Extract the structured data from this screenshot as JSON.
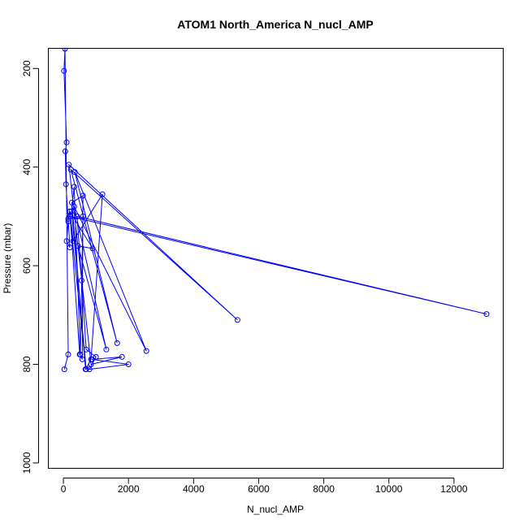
{
  "chart_data": {
    "type": "line",
    "title": "ATOM1 North_America N_nucl_AMP",
    "xlabel": "N_nucl_AMP",
    "ylabel": "Pressure (mbar)",
    "xlim": [
      -450,
      13500
    ],
    "ylim": [
      1010,
      160
    ],
    "y_reversed": true,
    "grid": false,
    "legend": "none",
    "line_color": "#0000ff",
    "marker": "open-circle",
    "xticks": [
      0,
      2000,
      4000,
      6000,
      8000,
      10000,
      12000
    ],
    "xtick_labels": [
      "0",
      "2000",
      "4000",
      "6000",
      "8000",
      "10000",
      "12000"
    ],
    "yticks": [
      200,
      400,
      600,
      800,
      1000
    ],
    "ytick_labels": [
      "200",
      "400",
      "600",
      "800",
      "1000"
    ],
    "series": [
      {
        "points": [
          [
            30,
            810
          ],
          [
            150,
            780
          ],
          [
            50,
            160
          ],
          [
            20,
            205
          ],
          [
            100,
            350
          ],
          [
            60,
            368
          ],
          [
            80,
            435
          ],
          [
            150,
            510
          ],
          [
            100,
            550
          ],
          [
            200,
            563
          ],
          [
            150,
            505
          ],
          [
            200,
            490
          ],
          [
            500,
            780
          ],
          [
            580,
            790
          ],
          [
            600,
            458
          ],
          [
            260,
            472
          ],
          [
            680,
            810
          ],
          [
            850,
            790
          ],
          [
            1200,
            455
          ],
          [
            300,
            550
          ],
          [
            200,
            490
          ],
          [
            900,
            565
          ],
          [
            450,
            560
          ],
          [
            1320,
            770
          ],
          [
            330,
            480
          ],
          [
            2550,
            773
          ],
          [
            350,
            410
          ],
          [
            1650,
            757
          ],
          [
            230,
            405
          ],
          [
            5350,
            710
          ],
          [
            170,
            395
          ],
          [
            850,
            800
          ],
          [
            1800,
            785
          ],
          [
            880,
            790
          ],
          [
            2000,
            800
          ],
          [
            800,
            810
          ],
          [
            1000,
            785
          ],
          [
            700,
            770
          ],
          [
            560,
            630
          ],
          [
            420,
            500
          ],
          [
            13000,
            698
          ],
          [
            200,
            500
          ],
          [
            700,
            810
          ],
          [
            250,
            490
          ],
          [
            330,
            440
          ],
          [
            520,
            780
          ],
          [
            600,
            500
          ]
        ]
      }
    ]
  }
}
